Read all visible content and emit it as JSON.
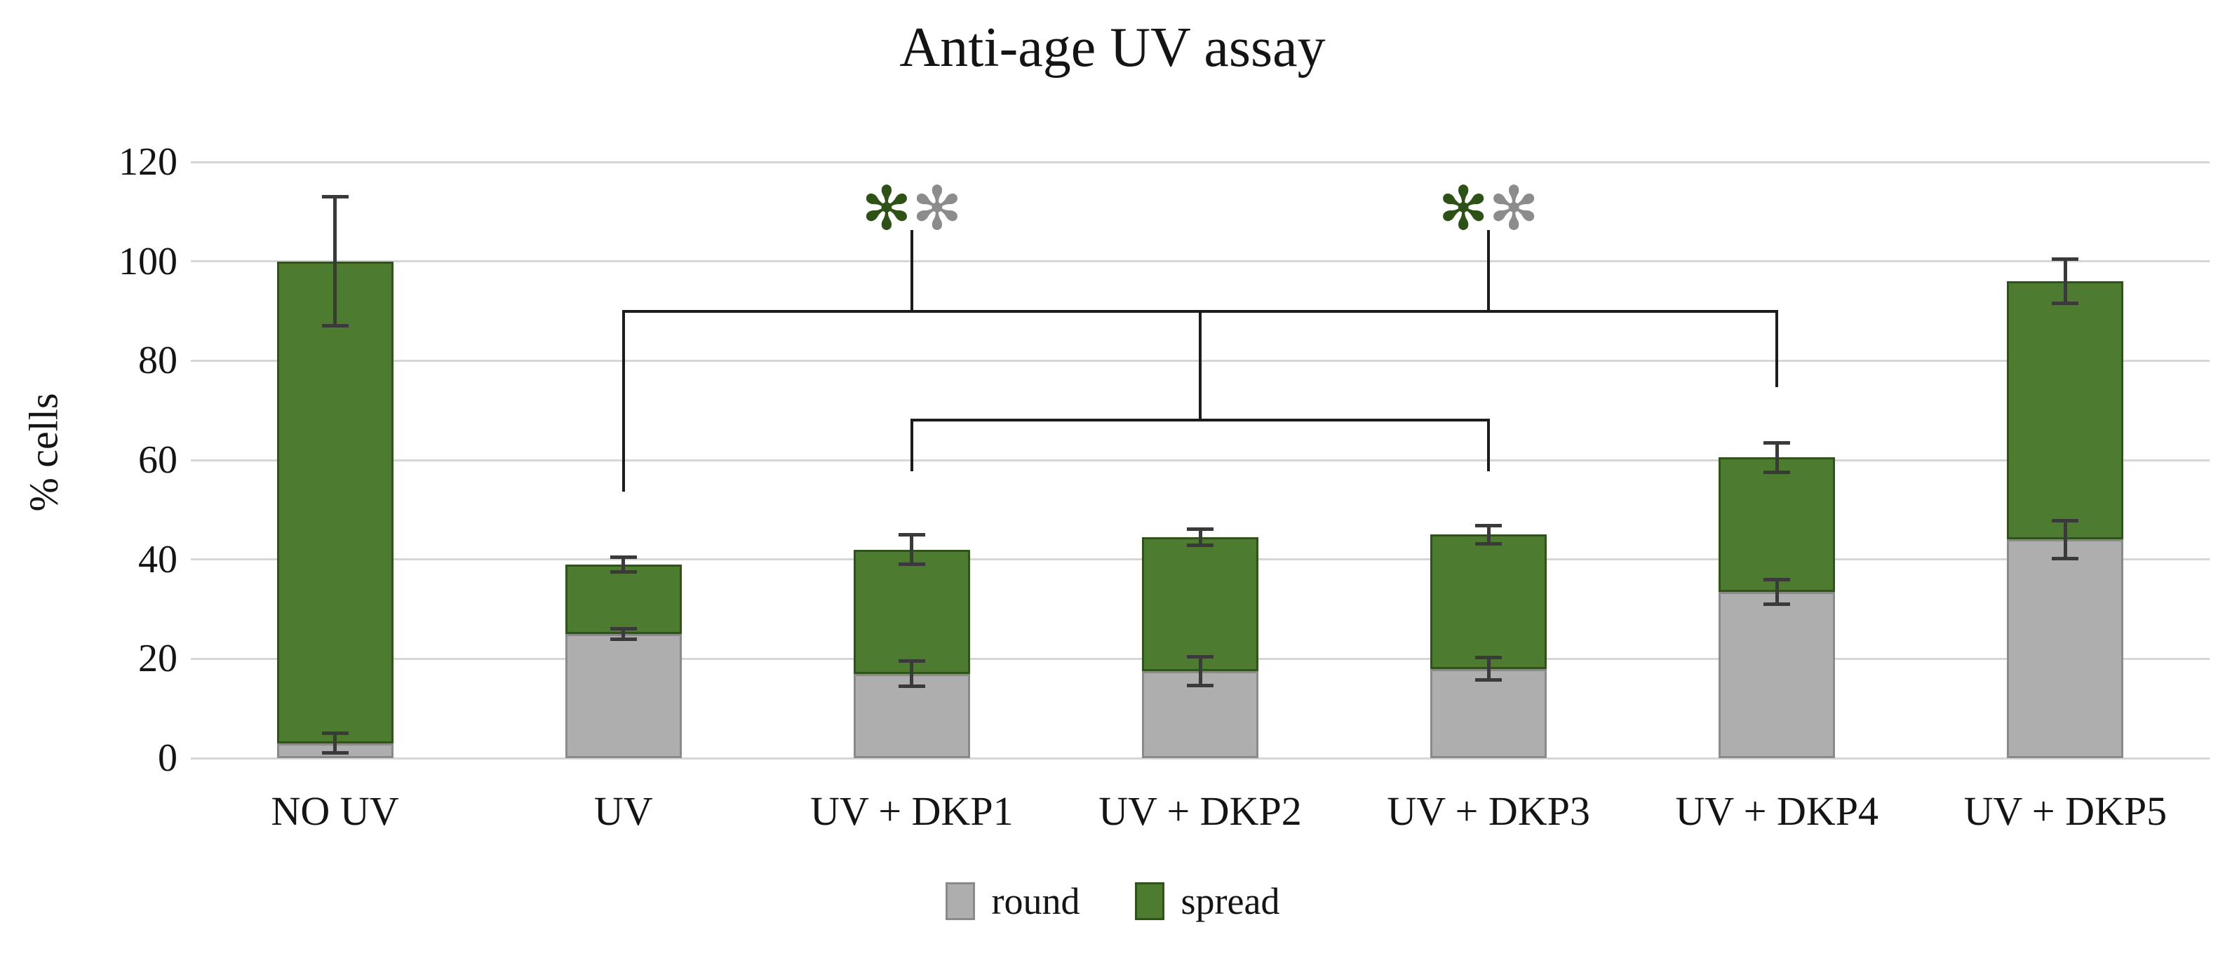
{
  "title": "Anti-age UV assay",
  "y_axis": {
    "label": "% cells",
    "ticks": [
      0,
      20,
      40,
      60,
      80,
      100,
      120
    ],
    "min": 0,
    "max": 120
  },
  "legend": {
    "items": [
      {
        "label": "round",
        "fill": "#aeaeae",
        "border": "#8a8a8a"
      },
      {
        "label": "spread",
        "fill": "#4d7c31",
        "border": "#2f5318"
      }
    ]
  },
  "colors": {
    "round_fill": "#aeaeae",
    "round_border": "#8a8a8a",
    "spread_fill": "#4d7c31",
    "spread_border": "#2f5318",
    "error_bar": "#3a3a3a",
    "bracket": "#1c1c1c",
    "gridline": "#d6d6d6",
    "asterisk_green": "#2e5117",
    "asterisk_gray": "#8c8c8c"
  },
  "chart_data": {
    "type": "bar",
    "stacked": true,
    "title": "Anti-age UV assay",
    "xlabel": "",
    "ylabel": "% cells",
    "ylim": [
      0,
      120
    ],
    "grid": "horizontal",
    "legend_position": "bottom",
    "categories": [
      "NO UV",
      "UV",
      "UV + DKP1",
      "UV + DKP2",
      "UV + DKP3",
      "UV + DKP4",
      "UV + DKP5"
    ],
    "series": [
      {
        "name": "round",
        "fill": "#aeaeae",
        "border": "#8a8a8a",
        "values": [
          3,
          25,
          17,
          17.5,
          18,
          33.5,
          44
        ],
        "errors": [
          2,
          1,
          2.5,
          2.9,
          2.3,
          2.5,
          3.8
        ]
      },
      {
        "name": "spread",
        "fill": "#4d7c31",
        "border": "#2f5318",
        "values": [
          97,
          14,
          25,
          27,
          27,
          27,
          52
        ],
        "errors": [
          13,
          1.5,
          3,
          1.6,
          1.8,
          2.9,
          4.5
        ]
      }
    ],
    "stack_totals": [
      100,
      39,
      42,
      44.5,
      45,
      60.5,
      96
    ],
    "significance": {
      "asterisk_pairs": [
        {
          "category_index": 2,
          "value": 110.5,
          "glyphs": [
            "✻",
            "✻"
          ],
          "colors": [
            "#2e5117",
            "#8c8c8c"
          ]
        },
        {
          "category_index": 4,
          "value": 110.5,
          "glyphs": [
            "✻",
            "✻"
          ],
          "colors": [
            "#2e5117",
            "#8c8c8c"
          ]
        }
      ],
      "bracket_segments": [
        {
          "x1": 1,
          "v1": 90,
          "x2": 5,
          "v2": 90
        },
        {
          "x1": 1,
          "v1": 90,
          "x2": 1,
          "v2": 54
        },
        {
          "x1": 5,
          "v1": 90,
          "x2": 5,
          "v2": 75
        },
        {
          "x1": 3,
          "v1": 90,
          "x2": 3,
          "v2": 68
        },
        {
          "x1": 2,
          "v1": 68,
          "x2": 4,
          "v2": 68
        },
        {
          "x1": 2,
          "v1": 68,
          "x2": 2,
          "v2": 58
        },
        {
          "x1": 4,
          "v1": 68,
          "x2": 4,
          "v2": 58
        },
        {
          "x1": 2,
          "v1": 106,
          "x2": 2,
          "v2": 90
        },
        {
          "x1": 4,
          "v1": 106,
          "x2": 4,
          "v2": 90
        }
      ]
    }
  }
}
